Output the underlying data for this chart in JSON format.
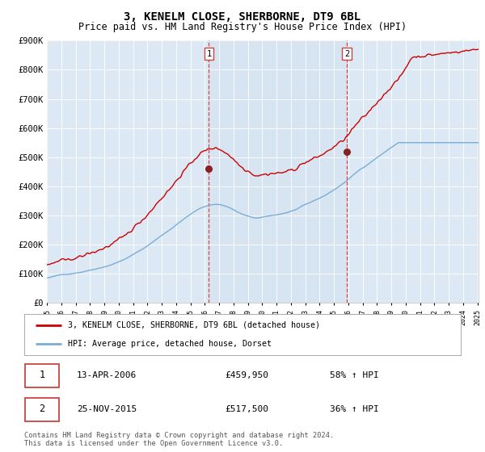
{
  "title": "3, KENELM CLOSE, SHERBORNE, DT9 6BL",
  "subtitle": "Price paid vs. HM Land Registry's House Price Index (HPI)",
  "ylim": [
    0,
    900000
  ],
  "yticks": [
    0,
    100000,
    200000,
    300000,
    400000,
    500000,
    600000,
    700000,
    800000,
    900000
  ],
  "ytick_labels": [
    "£0",
    "£100K",
    "£200K",
    "£300K",
    "£400K",
    "£500K",
    "£600K",
    "£700K",
    "£800K",
    "£900K"
  ],
  "background_color": "#dce9f5",
  "line1_color": "#cc0000",
  "line2_color": "#7aadd4",
  "marker_color": "#882222",
  "transaction1_date": 2006.28,
  "transaction1_price": 459950,
  "transaction2_date": 2015.9,
  "transaction2_price": 517500,
  "vline_color": "#dd4444",
  "shade_color": "#cfe0f0",
  "legend1_label": "3, KENELM CLOSE, SHERBORNE, DT9 6BL (detached house)",
  "legend2_label": "HPI: Average price, detached house, Dorset",
  "table_row1_badge": "1",
  "table_row1_date": "13-APR-2006",
  "table_row1_price": "£459,950",
  "table_row1_hpi": "58% ↑ HPI",
  "table_row2_badge": "2",
  "table_row2_date": "25-NOV-2015",
  "table_row2_price": "£517,500",
  "table_row2_hpi": "36% ↑ HPI",
  "footnote": "Contains HM Land Registry data © Crown copyright and database right 2024.\nThis data is licensed under the Open Government Licence v3.0.",
  "title_fontsize": 10,
  "subtitle_fontsize": 8.5,
  "tick_fontsize": 7.5,
  "xstart": 1995,
  "xend": 2025
}
